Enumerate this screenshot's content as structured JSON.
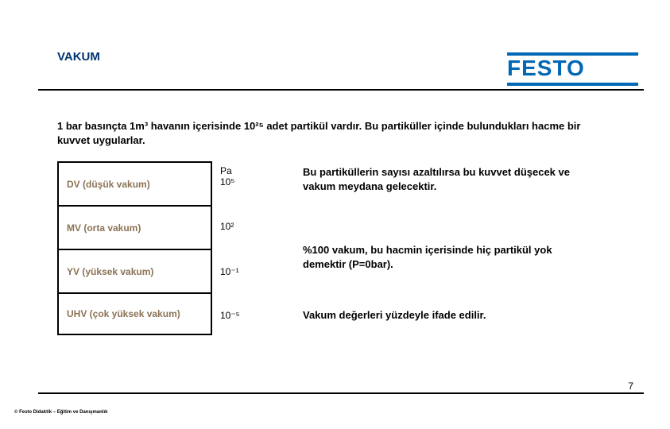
{
  "title": "VAKUM",
  "logo_text": "FESTO",
  "intro": "1 bar basınçta 1m³ havanın içerisinde 10²⁵ adet partikül vardır. Bu partiküller içinde bulundukları hacme bir kuvvet uygularlar.",
  "vacuum_levels": [
    {
      "name": "dv",
      "label": "DV (düşük vakum)"
    },
    {
      "name": "mv",
      "label": "MV (orta vakum)"
    },
    {
      "name": "yv",
      "label": "YV (yüksek vakum)"
    },
    {
      "name": "uhv",
      "label": "UHV (çok yüksek vakum)"
    }
  ],
  "scale_unit": "Pa",
  "scale_marks": [
    "10⁵",
    "10²",
    "10⁻¹",
    "10⁻⁵"
  ],
  "descriptions": [
    "Bu partiküllerin sayısı azaltılırsa bu kuvvet düşecek ve vakum meydana gelecektir.",
    "%100 vakum, bu hacmin içerisinde hiç partikül yok demektir (P=0bar).",
    "Vakum değerleri yüzdeyle ifade edilir."
  ],
  "page_number": "7",
  "footer": "© Festo Didaktik – Eğitim ve Danışmanlık",
  "colors": {
    "brand_blue": "#0068b4",
    "title_blue": "#003570",
    "faded_label": "#8b7355",
    "text": "#000000",
    "background": "#ffffff"
  }
}
